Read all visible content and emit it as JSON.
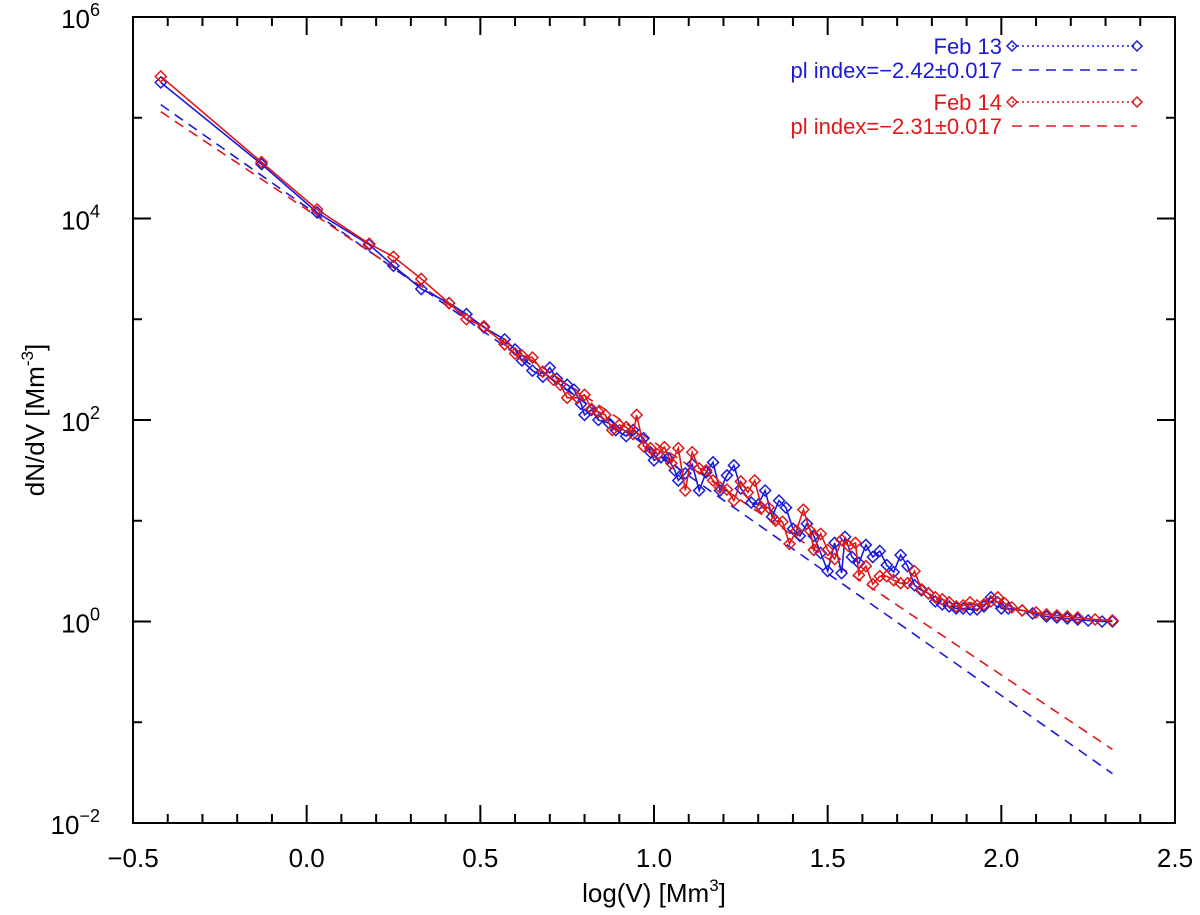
{
  "chart_data": {
    "type": "line",
    "xlabel": "log(V) [Mm",
    "xlabel_sup": "3",
    "xlabel_end": "]",
    "ylabel": "dN/dV [Mm",
    "ylabel_sup": "-3",
    "ylabel_end": "]",
    "xlim": [
      -0.5,
      2.5
    ],
    "ylim_log10": [
      -2,
      6
    ],
    "y_scale": "log",
    "x_ticks": [
      -0.5,
      0.0,
      0.5,
      1.0,
      1.5,
      2.0,
      2.5
    ],
    "x_tick_labels": [
      "−0.5",
      "0.0",
      "0.5",
      "1.0",
      "1.5",
      "2.0",
      "2.5"
    ],
    "y_ticks_log10": [
      -2,
      0,
      2,
      4,
      6
    ],
    "y_tick_base": "10",
    "y_tick_exponents": [
      "−2",
      "0",
      "2",
      "4",
      "6"
    ],
    "colors": {
      "feb13": "#1a1adb",
      "feb14": "#e01818"
    },
    "series": [
      {
        "name": "Feb 13",
        "color": "#1a1adb",
        "marker": "diamond",
        "points": [
          [
            -0.42,
            5.35
          ],
          [
            -0.13,
            4.54
          ],
          [
            0.03,
            4.06
          ],
          [
            0.18,
            3.74
          ],
          [
            0.25,
            3.53
          ],
          [
            0.33,
            3.3
          ],
          [
            0.41,
            3.16
          ],
          [
            0.46,
            3.05
          ],
          [
            0.51,
            2.92
          ],
          [
            0.57,
            2.8
          ],
          [
            0.6,
            2.7
          ],
          [
            0.62,
            2.59
          ],
          [
            0.65,
            2.49
          ],
          [
            0.68,
            2.43
          ],
          [
            0.7,
            2.52
          ],
          [
            0.72,
            2.41
          ],
          [
            0.75,
            2.35
          ],
          [
            0.77,
            2.3
          ],
          [
            0.79,
            2.16
          ],
          [
            0.8,
            2.05
          ],
          [
            0.82,
            2.1
          ],
          [
            0.84,
            2.0
          ],
          [
            0.87,
            1.97
          ],
          [
            0.89,
            1.9
          ],
          [
            0.92,
            1.84
          ],
          [
            0.94,
            1.9
          ],
          [
            0.97,
            1.82
          ],
          [
            0.99,
            1.68
          ],
          [
            1.0,
            1.6
          ],
          [
            1.02,
            1.63
          ],
          [
            1.04,
            1.62
          ],
          [
            1.06,
            1.5
          ],
          [
            1.07,
            1.4
          ],
          [
            1.09,
            1.47
          ],
          [
            1.11,
            1.56
          ],
          [
            1.13,
            1.3
          ],
          [
            1.15,
            1.48
          ],
          [
            1.17,
            1.58
          ],
          [
            1.19,
            1.3
          ],
          [
            1.21,
            1.45
          ],
          [
            1.23,
            1.55
          ],
          [
            1.25,
            1.32
          ],
          [
            1.28,
            1.18
          ],
          [
            1.3,
            1.16
          ],
          [
            1.32,
            1.3
          ],
          [
            1.34,
            1.04
          ],
          [
            1.36,
            1.2
          ],
          [
            1.38,
            1.13
          ],
          [
            1.4,
            0.92
          ],
          [
            1.42,
            0.85
          ],
          [
            1.44,
            0.97
          ],
          [
            1.46,
            0.85
          ],
          [
            1.48,
            0.68
          ],
          [
            1.5,
            0.5
          ],
          [
            1.52,
            0.78
          ],
          [
            1.54,
            0.48
          ],
          [
            1.55,
            0.84
          ],
          [
            1.57,
            0.64
          ],
          [
            1.59,
            0.58
          ],
          [
            1.61,
            0.76
          ],
          [
            1.63,
            0.64
          ],
          [
            1.65,
            0.7
          ],
          [
            1.67,
            0.56
          ],
          [
            1.69,
            0.49
          ],
          [
            1.71,
            0.66
          ],
          [
            1.73,
            0.55
          ],
          [
            1.75,
            0.36
          ],
          [
            1.77,
            0.31
          ],
          [
            1.79,
            0.28
          ],
          [
            1.81,
            0.2
          ],
          [
            1.83,
            0.17
          ],
          [
            1.85,
            0.15
          ],
          [
            1.87,
            0.13
          ],
          [
            1.89,
            0.13
          ],
          [
            1.91,
            0.12
          ],
          [
            1.93,
            0.12
          ],
          [
            1.95,
            0.15
          ],
          [
            1.97,
            0.24
          ],
          [
            1.99,
            0.19
          ],
          [
            2.0,
            0.13
          ],
          [
            2.02,
            0.13
          ],
          [
            2.06,
            0.11
          ],
          [
            2.09,
            0.08
          ],
          [
            2.13,
            0.05
          ],
          [
            2.16,
            0.04
          ],
          [
            2.19,
            0.03
          ],
          [
            2.22,
            0.02
          ],
          [
            2.25,
            0.01
          ],
          [
            2.29,
            0.0
          ],
          [
            2.32,
            0.0
          ]
        ]
      },
      {
        "name": "Feb 14",
        "color": "#e01818",
        "marker": "diamond",
        "points": [
          [
            -0.42,
            5.41
          ],
          [
            -0.13,
            4.56
          ],
          [
            0.03,
            4.09
          ],
          [
            0.18,
            3.75
          ],
          [
            0.25,
            3.62
          ],
          [
            0.33,
            3.4
          ],
          [
            0.41,
            3.16
          ],
          [
            0.46,
            3.0
          ],
          [
            0.51,
            2.93
          ],
          [
            0.57,
            2.75
          ],
          [
            0.6,
            2.66
          ],
          [
            0.62,
            2.64
          ],
          [
            0.65,
            2.62
          ],
          [
            0.68,
            2.48
          ],
          [
            0.71,
            2.4
          ],
          [
            0.73,
            2.35
          ],
          [
            0.75,
            2.22
          ],
          [
            0.78,
            2.22
          ],
          [
            0.8,
            2.25
          ],
          [
            0.82,
            2.11
          ],
          [
            0.84,
            2.08
          ],
          [
            0.86,
            2.05
          ],
          [
            0.88,
            1.9
          ],
          [
            0.9,
            1.95
          ],
          [
            0.92,
            1.93
          ],
          [
            0.94,
            1.86
          ],
          [
            0.95,
            2.05
          ],
          [
            0.97,
            1.74
          ],
          [
            0.99,
            1.72
          ],
          [
            1.01,
            1.66
          ],
          [
            1.03,
            1.73
          ],
          [
            1.05,
            1.57
          ],
          [
            1.07,
            1.72
          ],
          [
            1.09,
            1.3
          ],
          [
            1.11,
            1.68
          ],
          [
            1.13,
            1.52
          ],
          [
            1.15,
            1.5
          ],
          [
            1.17,
            1.4
          ],
          [
            1.19,
            1.33
          ],
          [
            1.21,
            1.31
          ],
          [
            1.23,
            1.2
          ],
          [
            1.25,
            1.39
          ],
          [
            1.27,
            1.28
          ],
          [
            1.29,
            1.4
          ],
          [
            1.31,
            1.13
          ],
          [
            1.33,
            1.13
          ],
          [
            1.35,
            1.0
          ],
          [
            1.37,
            0.99
          ],
          [
            1.39,
            0.77
          ],
          [
            1.41,
            0.9
          ],
          [
            1.43,
            1.11
          ],
          [
            1.45,
            0.9
          ],
          [
            1.46,
            0.71
          ],
          [
            1.48,
            0.87
          ],
          [
            1.5,
            0.71
          ],
          [
            1.52,
            0.62
          ],
          [
            1.54,
            0.81
          ],
          [
            1.56,
            0.75
          ],
          [
            1.58,
            0.78
          ],
          [
            1.59,
            0.46
          ],
          [
            1.61,
            0.55
          ],
          [
            1.63,
            0.37
          ],
          [
            1.65,
            0.45
          ],
          [
            1.67,
            0.45
          ],
          [
            1.69,
            0.41
          ],
          [
            1.71,
            0.38
          ],
          [
            1.73,
            0.38
          ],
          [
            1.75,
            0.5
          ],
          [
            1.77,
            0.32
          ],
          [
            1.79,
            0.28
          ],
          [
            1.81,
            0.24
          ],
          [
            1.83,
            0.22
          ],
          [
            1.85,
            0.19
          ],
          [
            1.87,
            0.15
          ],
          [
            1.89,
            0.16
          ],
          [
            1.91,
            0.19
          ],
          [
            1.93,
            0.16
          ],
          [
            1.95,
            0.17
          ],
          [
            1.97,
            0.2
          ],
          [
            1.99,
            0.24
          ],
          [
            2.01,
            0.18
          ],
          [
            2.03,
            0.14
          ],
          [
            2.06,
            0.11
          ],
          [
            2.1,
            0.09
          ],
          [
            2.13,
            0.07
          ],
          [
            2.16,
            0.06
          ],
          [
            2.19,
            0.05
          ],
          [
            2.22,
            0.04
          ],
          [
            2.27,
            0.02
          ],
          [
            2.32,
            0.01
          ]
        ]
      }
    ],
    "fits": [
      {
        "name": "Feb 13 fit",
        "color": "#1a1adb",
        "index": -2.42,
        "x": [
          -0.42,
          2.32
        ],
        "log10_y": [
          5.13,
          -1.51
        ]
      },
      {
        "name": "Feb 14 fit",
        "color": "#e01818",
        "index": -2.31,
        "x": [
          -0.42,
          2.32
        ],
        "log10_y": [
          5.06,
          -1.27
        ]
      }
    ],
    "legend": {
      "position": "top-right",
      "entries": [
        {
          "label": "Feb 13",
          "color": "#1a1adb",
          "style": "dotted-diamond"
        },
        {
          "label": "pl index=−2.42±0.017",
          "color": "#1a1adb",
          "style": "dashed"
        },
        {
          "label": "Feb 14",
          "color": "#e01818",
          "style": "dotted-diamond"
        },
        {
          "label": "pl index=−2.31±0.017",
          "color": "#e01818",
          "style": "dashed"
        }
      ]
    }
  }
}
